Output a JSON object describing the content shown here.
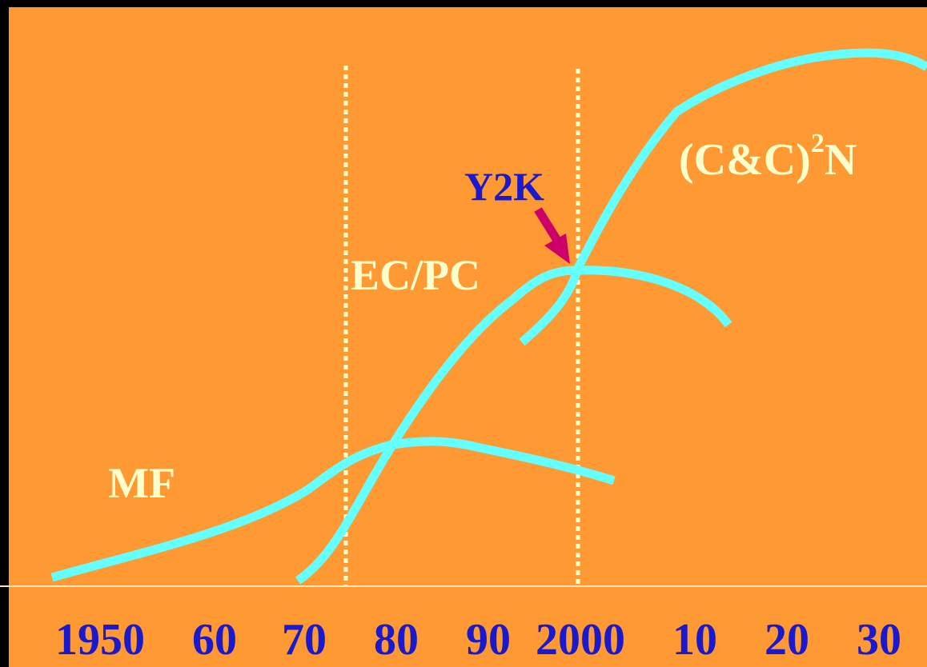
{
  "labels": {
    "mf": "MF",
    "ec_pc": "EC/PC",
    "y2k": "Y2K",
    "cc2n": {
      "text": "(C&C)",
      "superscript": "2",
      "suffix": "N"
    }
  },
  "x_axis": {
    "ticks": [
      "1950",
      "60",
      "70",
      "80",
      "90",
      "2000",
      "10",
      "20",
      "30"
    ]
  }
}
